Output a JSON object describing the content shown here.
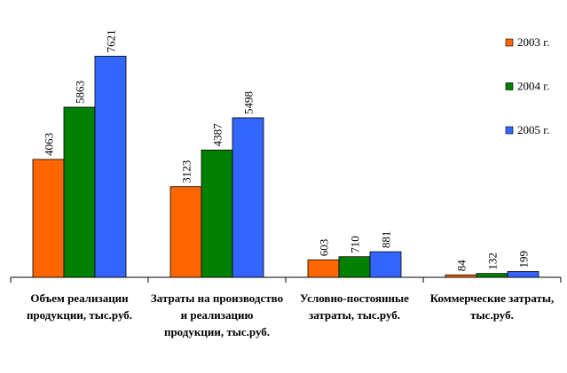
{
  "chart_data": {
    "type": "bar",
    "categories": [
      "Объем реализации продукции, тыс.руб.",
      "Затраты на производство и реализацию продукции, тыс.руб.",
      "Условно-постоянные затраты, тыс.руб.",
      "Коммерческие затраты, тыс.руб."
    ],
    "series": [
      {
        "name": "2003 г.",
        "color": "#ff6600",
        "values": [
          4063,
          3123,
          603,
          84
        ]
      },
      {
        "name": "2004 г.",
        "color": "#008000",
        "values": [
          5863,
          4387,
          710,
          132
        ]
      },
      {
        "name": "2005 г.",
        "color": "#3366ff",
        "values": [
          7621,
          5498,
          881,
          199
        ]
      }
    ],
    "ylim": [
      0,
      8000
    ],
    "legend": "right"
  }
}
